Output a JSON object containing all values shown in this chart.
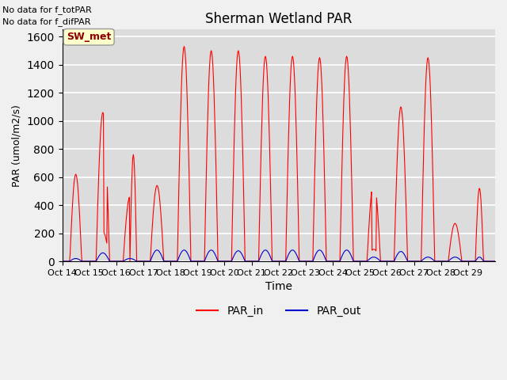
{
  "title": "Sherman Wetland PAR",
  "ylabel": "PAR (umol/m2/s)",
  "xlabel": "Time",
  "top_left_text_line1": "No data for f_totPAR",
  "top_left_text_line2": "No data for f_difPAR",
  "box_label": "SW_met",
  "x_tick_labels": [
    "Oct 14",
    "Oct 15",
    "Oct 16",
    "Oct 17",
    "Oct 18",
    "Oct 19",
    "Oct 20",
    "Oct 21",
    "Oct 22",
    "Oct 23",
    "Oct 24",
    "Oct 25",
    "Oct 26",
    "Oct 27",
    "Oct 28",
    "Oct 29"
  ],
  "ylim": [
    0,
    1650
  ],
  "yticks": [
    0,
    200,
    400,
    600,
    800,
    1000,
    1200,
    1400,
    1600
  ],
  "plot_bg_color": "#dcdcdc",
  "fig_bg_color": "#f0f0f0",
  "grid_color": "#ffffff",
  "par_in_color": "#ff0000",
  "par_out_color": "#0000cc",
  "legend_par_in": "PAR_in",
  "legend_par_out": "PAR_out",
  "box_facecolor": "#ffffcc",
  "box_edgecolor": "#999999",
  "box_textcolor": "#8b0000"
}
